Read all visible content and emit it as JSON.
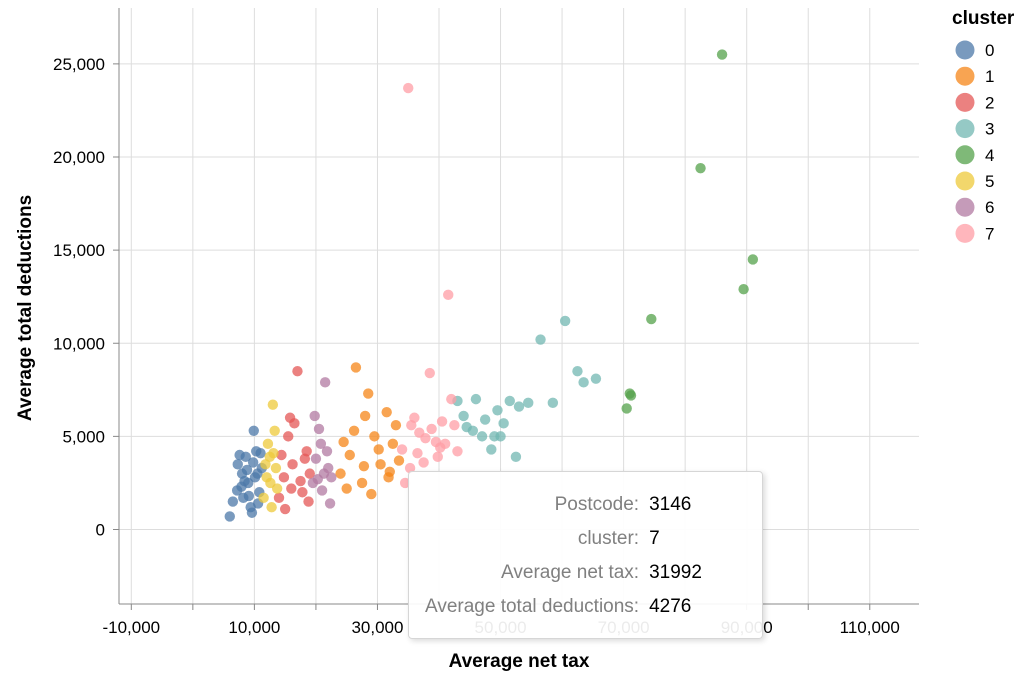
{
  "chart_data": {
    "type": "scatter",
    "xlabel": "Average net tax",
    "ylabel": "Average total deductions",
    "xlim": [
      -12000,
      118000
    ],
    "ylim": [
      -4000,
      28000
    ],
    "x_ticks": [
      -10000,
      10000,
      30000,
      50000,
      70000,
      90000,
      110000
    ],
    "x_tick_labels": [
      "-10,000",
      "10,000",
      "30,000",
      "50,000",
      "70,000",
      "90,000",
      "110,000"
    ],
    "x_grid": [
      -10000,
      0,
      10000,
      20000,
      30000,
      40000,
      50000,
      60000,
      70000,
      80000,
      90000,
      100000,
      110000
    ],
    "y_ticks": [
      0,
      5000,
      10000,
      15000,
      20000,
      25000
    ],
    "y_tick_labels": [
      "0",
      "5,000",
      "10,000",
      "15,000",
      "20,000",
      "25,000"
    ],
    "grid": true,
    "legend": {
      "title": "cluster",
      "placement": "right",
      "entries": [
        "0",
        "1",
        "2",
        "3",
        "4",
        "5",
        "6",
        "7"
      ],
      "colors": [
        "#4c78a8",
        "#f58518",
        "#e45756",
        "#72b7b2",
        "#54a24b",
        "#eeca3b",
        "#b279a2",
        "#ff9da6"
      ]
    },
    "series": [
      {
        "name": "0",
        "points": [
          [
            6000,
            700
          ],
          [
            6500,
            1500
          ],
          [
            7200,
            2100
          ],
          [
            8000,
            3000
          ],
          [
            8600,
            3900
          ],
          [
            9000,
            2500
          ],
          [
            9400,
            1200
          ],
          [
            9900,
            5300
          ],
          [
            10300,
            4200
          ],
          [
            10800,
            2000
          ],
          [
            11200,
            3300
          ],
          [
            7600,
            4000
          ],
          [
            8400,
            2600
          ],
          [
            9100,
            1800
          ],
          [
            9800,
            3600
          ],
          [
            10600,
            1400
          ],
          [
            7900,
            2300
          ],
          [
            8800,
            3200
          ],
          [
            10100,
            2800
          ],
          [
            11000,
            4100
          ],
          [
            7300,
            3500
          ],
          [
            9600,
            900
          ],
          [
            8200,
            1700
          ],
          [
            10500,
            3000
          ]
        ]
      },
      {
        "name": "1",
        "points": [
          [
            24000,
            3000
          ],
          [
            25500,
            4000
          ],
          [
            26500,
            8700
          ],
          [
            27500,
            2500
          ],
          [
            28500,
            7300
          ],
          [
            29500,
            5000
          ],
          [
            30500,
            3500
          ],
          [
            31500,
            6300
          ],
          [
            32500,
            4600
          ],
          [
            33500,
            3700
          ],
          [
            25000,
            2200
          ],
          [
            26200,
            5300
          ],
          [
            27800,
            3400
          ],
          [
            29000,
            1900
          ],
          [
            30200,
            4300
          ],
          [
            31800,
            2800
          ],
          [
            33000,
            5600
          ],
          [
            24500,
            4700
          ],
          [
            28000,
            6100
          ],
          [
            32000,
            3100
          ]
        ]
      },
      {
        "name": "2",
        "points": [
          [
            14000,
            1700
          ],
          [
            14800,
            2800
          ],
          [
            15500,
            5000
          ],
          [
            16200,
            3500
          ],
          [
            17000,
            8500
          ],
          [
            17800,
            2000
          ],
          [
            18500,
            4200
          ],
          [
            19000,
            3000
          ],
          [
            15000,
            1100
          ],
          [
            16500,
            5700
          ],
          [
            17500,
            2600
          ],
          [
            18200,
            3800
          ],
          [
            14400,
            4000
          ],
          [
            16000,
            2200
          ],
          [
            18800,
            1500
          ],
          [
            15800,
            6000
          ]
        ]
      },
      {
        "name": "3",
        "points": [
          [
            43000,
            6900
          ],
          [
            44500,
            5500
          ],
          [
            45500,
            5300
          ],
          [
            46000,
            7000
          ],
          [
            47500,
            5900
          ],
          [
            48500,
            4300
          ],
          [
            49500,
            6400
          ],
          [
            50500,
            5700
          ],
          [
            51500,
            6900
          ],
          [
            52500,
            3900
          ],
          [
            54500,
            6800
          ],
          [
            56500,
            10200
          ],
          [
            58500,
            6800
          ],
          [
            60500,
            11200
          ],
          [
            62500,
            8500
          ],
          [
            63500,
            7900
          ],
          [
            65500,
            8100
          ],
          [
            47000,
            5000
          ],
          [
            50000,
            5000
          ],
          [
            53000,
            6600
          ],
          [
            44000,
            6100
          ],
          [
            49000,
            5000
          ]
        ]
      },
      {
        "name": "4",
        "points": [
          [
            70500,
            6500
          ],
          [
            71000,
            7300
          ],
          [
            71200,
            7200
          ],
          [
            74500,
            11300
          ],
          [
            82500,
            19400
          ],
          [
            86000,
            25500
          ],
          [
            89500,
            12900
          ],
          [
            91000,
            14500
          ]
        ]
      },
      {
        "name": "5",
        "points": [
          [
            11500,
            1700
          ],
          [
            12000,
            2800
          ],
          [
            12500,
            3900
          ],
          [
            13000,
            6700
          ],
          [
            13300,
            5300
          ],
          [
            13700,
            2200
          ],
          [
            12200,
            4600
          ],
          [
            12800,
            1200
          ],
          [
            13500,
            3300
          ],
          [
            11800,
            3500
          ],
          [
            12600,
            2500
          ],
          [
            13100,
            4100
          ]
        ]
      },
      {
        "name": "6",
        "points": [
          [
            19500,
            2500
          ],
          [
            20000,
            3800
          ],
          [
            20500,
            5400
          ],
          [
            21000,
            2100
          ],
          [
            21500,
            7900
          ],
          [
            22000,
            3300
          ],
          [
            22500,
            2800
          ],
          [
            19800,
            6100
          ],
          [
            20800,
            4600
          ],
          [
            21300,
            3000
          ],
          [
            22300,
            1400
          ],
          [
            20300,
            2700
          ],
          [
            21800,
            4200
          ]
        ]
      },
      {
        "name": "7",
        "points": [
          [
            34000,
            4300
          ],
          [
            34500,
            2500
          ],
          [
            35000,
            23700
          ],
          [
            35500,
            5600
          ],
          [
            36000,
            6000
          ],
          [
            36500,
            4100
          ],
          [
            37500,
            3600
          ],
          [
            38500,
            8400
          ],
          [
            39500,
            4700
          ],
          [
            40500,
            5800
          ],
          [
            41500,
            12600
          ],
          [
            42000,
            7000
          ],
          [
            42500,
            5600
          ],
          [
            43000,
            4200
          ],
          [
            36800,
            5200
          ],
          [
            37800,
            4900
          ],
          [
            38800,
            5400
          ],
          [
            39800,
            3900
          ],
          [
            35300,
            3300
          ],
          [
            40200,
            4400
          ],
          [
            41000,
            4600
          ]
        ]
      }
    ]
  },
  "tooltip": {
    "rows": [
      {
        "key": "Postcode:",
        "value": "3146"
      },
      {
        "key": "cluster:",
        "value": "7"
      },
      {
        "key": "Average net tax:",
        "value": "31992"
      },
      {
        "key": "Average total deductions:",
        "value": "4276"
      }
    ]
  }
}
